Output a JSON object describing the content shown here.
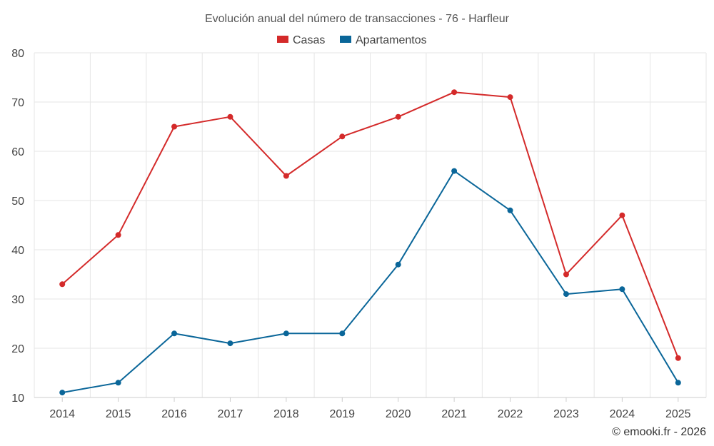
{
  "chart_data": {
    "type": "line",
    "title": "Evolución anual del número de transacciones - 76 - Harfleur",
    "categories": [
      "2014",
      "2015",
      "2016",
      "2017",
      "2018",
      "2019",
      "2020",
      "2021",
      "2022",
      "2023",
      "2024",
      "2025"
    ],
    "series": [
      {
        "name": "Casas",
        "color": "#d42a2a",
        "values": [
          33,
          43,
          65,
          67,
          55,
          63,
          67,
          72,
          71,
          35,
          47,
          18
        ]
      },
      {
        "name": "Apartamentos",
        "color": "#0a6699",
        "values": [
          11,
          13,
          23,
          21,
          23,
          23,
          37,
          56,
          48,
          31,
          32,
          13
        ]
      }
    ],
    "ylim": [
      10,
      80
    ],
    "yticks": [
      "10",
      "20",
      "30",
      "40",
      "50",
      "60",
      "70",
      "80"
    ],
    "xlabel": "",
    "ylabel": "",
    "legend_position": "top-center",
    "grid": true
  },
  "credit": "© emooki.fr - 2026"
}
